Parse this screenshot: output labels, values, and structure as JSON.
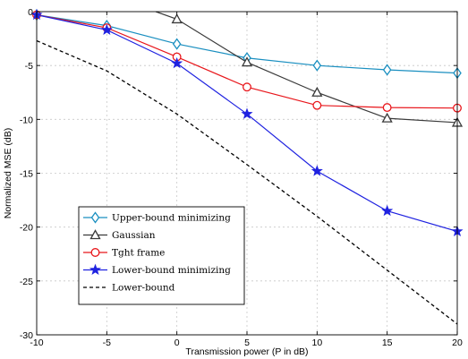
{
  "chart_data": {
    "type": "line",
    "title": "",
    "xlabel": "Transmission power (P in dB)",
    "ylabel": "Normalized MSE (dB)",
    "xlim": [
      -10,
      20
    ],
    "ylim": [
      -30,
      0
    ],
    "xticks": [
      -10,
      -5,
      0,
      5,
      10,
      15,
      20
    ],
    "yticks": [
      0,
      -5,
      -10,
      -15,
      -20,
      -25,
      -30
    ],
    "grid": true,
    "legend_position": "lower-left",
    "series": [
      {
        "name": "Upper-bound minimizing",
        "color": "#1a8fc0",
        "marker": "diamond",
        "line": "solid",
        "x": [
          -10,
          -5,
          0,
          5,
          10,
          15,
          20
        ],
        "y": [
          -0.3,
          -1.3,
          -3.0,
          -4.3,
          -5.0,
          -5.4,
          -5.7
        ]
      },
      {
        "name": "Gaussian",
        "color": "#3a3a3a",
        "marker": "triangle",
        "line": "solid",
        "x": [
          -1.5,
          0,
          5,
          10,
          15,
          20
        ],
        "y": [
          0,
          -0.7,
          -4.7,
          -7.5,
          -9.9,
          -10.3
        ]
      },
      {
        "name": "Tght frame",
        "color": "#e8161b",
        "marker": "circle",
        "line": "solid",
        "x": [
          -10,
          -5,
          0,
          5,
          10,
          15,
          20
        ],
        "y": [
          -0.3,
          -1.5,
          -4.2,
          -7.0,
          -8.7,
          -8.9,
          -8.95
        ]
      },
      {
        "name": "Lower-bound minimizing",
        "color": "#1f22e0",
        "marker": "star",
        "line": "solid",
        "x": [
          -10,
          -5,
          0,
          5,
          10,
          15,
          20
        ],
        "y": [
          -0.3,
          -1.7,
          -4.8,
          -9.5,
          -14.8,
          -18.5,
          -20.4
        ]
      },
      {
        "name": "Lower-bound",
        "color": "#000000",
        "marker": "none",
        "line": "dashed",
        "x": [
          -10,
          -5,
          0,
          5,
          10,
          15,
          20
        ],
        "y": [
          -2.7,
          -5.5,
          -9.5,
          -14.2,
          -19.0,
          -24.0,
          -29.0
        ]
      }
    ]
  }
}
